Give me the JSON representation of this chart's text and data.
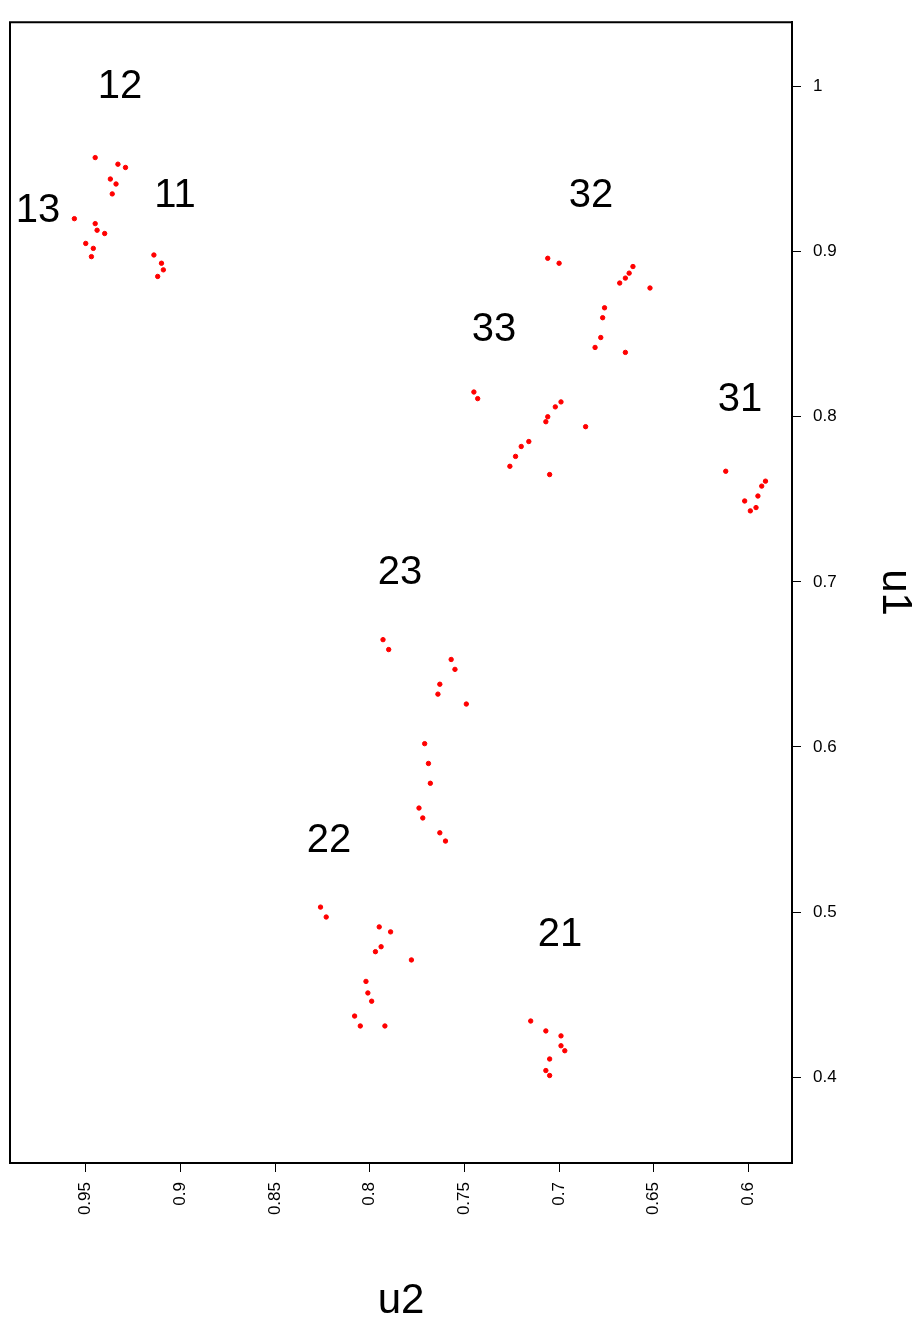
{
  "chart_data": {
    "type": "scatter",
    "xlabel": "u2",
    "ylabel": "u1",
    "xlim": [
      0.99,
      0.577
    ],
    "ylim": [
      0.348,
      1.039
    ],
    "xticks": [
      0.6,
      0.65,
      0.7,
      0.75,
      0.8,
      0.85,
      0.9,
      0.95
    ],
    "yticks": [
      0.4,
      0.5,
      0.6,
      0.7,
      0.8,
      0.9,
      1
    ],
    "grid": false,
    "legend": false,
    "marker": "circle",
    "series": [
      {
        "color": "#ff0000",
        "x": [
          0.956,
          0.95,
          0.947,
          0.945,
          0.944,
          0.94,
          0.946,
          0.945,
          0.937,
          0.936,
          0.933,
          0.929,
          0.934,
          0.914,
          0.91,
          0.909,
          0.912,
          0.706,
          0.7,
          0.678,
          0.681,
          0.676,
          0.677,
          0.665,
          0.668,
          0.663,
          0.661,
          0.652,
          0.665,
          0.745,
          0.743,
          0.686,
          0.702,
          0.699,
          0.706,
          0.707,
          0.726,
          0.72,
          0.716,
          0.723,
          0.705,
          0.612,
          0.602,
          0.599,
          0.595,
          0.593,
          0.591,
          0.596,
          0.793,
          0.79,
          0.757,
          0.755,
          0.763,
          0.764,
          0.749,
          0.771,
          0.769,
          0.768,
          0.774,
          0.772,
          0.763,
          0.76,
          0.826,
          0.823,
          0.795,
          0.789,
          0.794,
          0.797,
          0.778,
          0.802,
          0.801,
          0.799,
          0.808,
          0.805,
          0.792,
          0.715,
          0.707,
          0.699,
          0.699,
          0.697,
          0.705,
          0.707,
          0.705
        ],
        "values": [
          0.92,
          0.905,
          0.897,
          0.917,
          0.913,
          0.911,
          0.902,
          0.957,
          0.944,
          0.935,
          0.953,
          0.951,
          0.941,
          0.898,
          0.893,
          0.889,
          0.885,
          0.896,
          0.893,
          0.848,
          0.842,
          0.866,
          0.86,
          0.839,
          0.881,
          0.887,
          0.891,
          0.878,
          0.884,
          0.815,
          0.811,
          0.794,
          0.806,
          0.809,
          0.8,
          0.797,
          0.77,
          0.782,
          0.785,
          0.776,
          0.765,
          0.767,
          0.749,
          0.743,
          0.752,
          0.758,
          0.761,
          0.745,
          0.665,
          0.659,
          0.653,
          0.647,
          0.638,
          0.632,
          0.626,
          0.602,
          0.59,
          0.578,
          0.563,
          0.557,
          0.548,
          0.543,
          0.503,
          0.497,
          0.491,
          0.488,
          0.479,
          0.476,
          0.471,
          0.458,
          0.451,
          0.446,
          0.437,
          0.431,
          0.431,
          0.434,
          0.428,
          0.425,
          0.419,
          0.416,
          0.411,
          0.404,
          0.401
        ]
      }
    ],
    "annotations": [
      "11",
      "12",
      "13",
      "32",
      "33",
      "31",
      "23",
      "22",
      "21"
    ]
  }
}
